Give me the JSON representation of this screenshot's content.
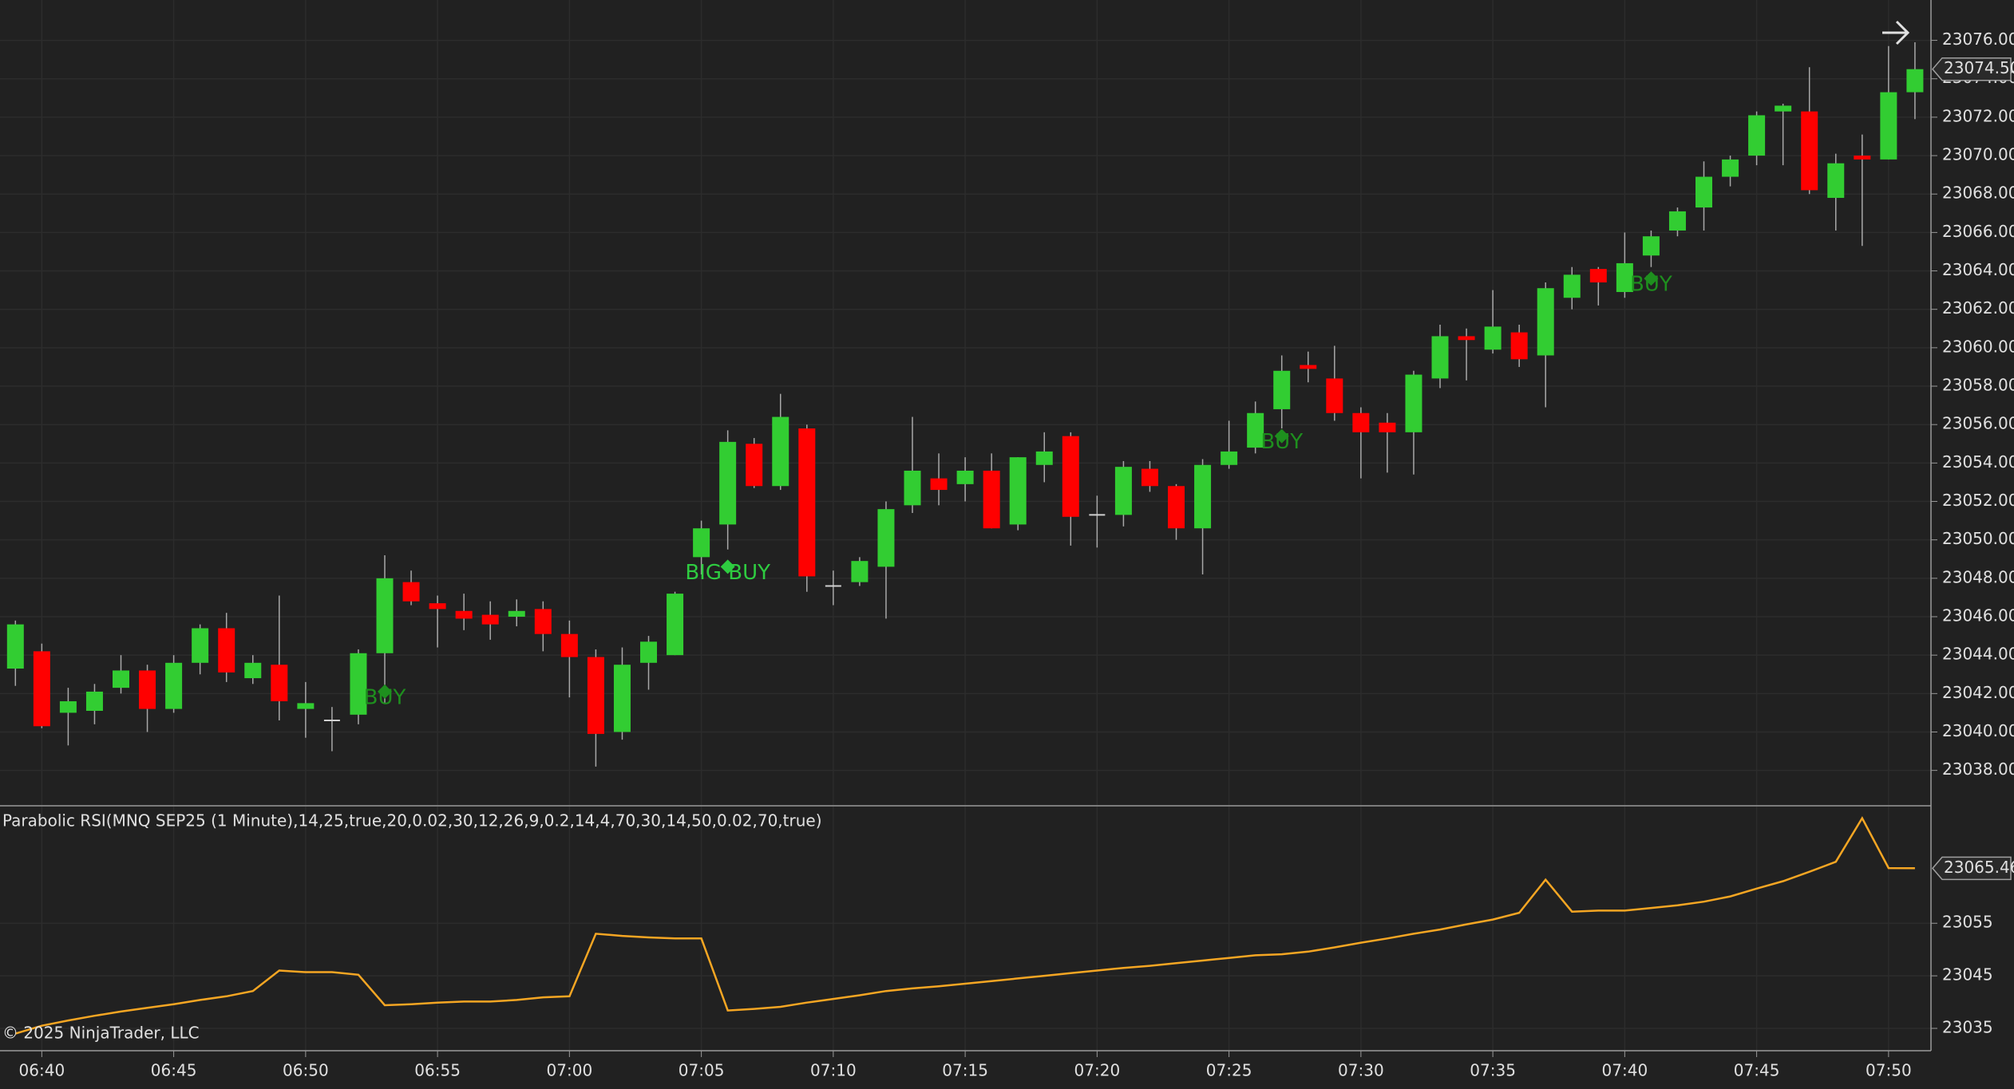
{
  "chart_data": [
    {
      "type": "candlestick",
      "categories": [
        null,
        "06:40",
        null,
        null,
        null,
        null,
        "06:45",
        null,
        null,
        null,
        null,
        "06:50",
        null,
        null,
        null,
        null,
        "06:55",
        null,
        null,
        null,
        null,
        "07:00",
        null,
        null,
        null,
        null,
        "07:05",
        null,
        null,
        null,
        null,
        "07:10",
        null,
        null,
        null,
        null,
        "07:15",
        null,
        null,
        null,
        null,
        "07:20",
        null,
        null,
        null,
        null,
        "07:25",
        null,
        null,
        null,
        null,
        "07:30",
        null,
        null,
        null,
        null,
        "07:35",
        null,
        null,
        null,
        null,
        "07:40",
        null,
        null,
        null,
        null,
        "07:45",
        null,
        null,
        null,
        null,
        "07:50",
        null
      ],
      "open": [
        23043.3,
        23044.2,
        23041,
        23041.1,
        23042.3,
        23043.2,
        23041.2,
        23043.6,
        23045.4,
        23042.8,
        23043.5,
        23041.2,
        23040.6,
        23040.9,
        23044.1,
        23047.8,
        23046.7,
        23046.3,
        23046.1,
        23046,
        23046.4,
        23045.1,
        23043.9,
        23040,
        23043.6,
        23044,
        23049.1,
        23050.8,
        23055,
        23052.8,
        23055.8,
        23047.6,
        23047.8,
        23048.6,
        23051.8,
        23053.2,
        23052.9,
        23053.6,
        23050.8,
        23053.9,
        23055.4,
        23051.3,
        23051.3,
        23053.7,
        23052.8,
        23050.6,
        23053.9,
        23054.8,
        23056.8,
        23059.1,
        23058.4,
        23056.6,
        23056.1,
        23055.6,
        23058.4,
        23060.6,
        23059.9,
        23060.8,
        23059.6,
        23062.6,
        23064.1,
        23062.9,
        23064.8,
        23066.1,
        23067.3,
        23068.9,
        23070,
        23072.3,
        23072.3,
        23067.8,
        23070,
        23069.8,
        23073.3
      ],
      "high": [
        23045.8,
        23044.6,
        23042.3,
        23042.5,
        23044,
        23043.5,
        23044,
        23045.6,
        23046.2,
        23044,
        23047.1,
        23042.6,
        23041.3,
        23044.3,
        23049.2,
        23048.4,
        23047.1,
        23047.2,
        23046.8,
        23046.9,
        23046.8,
        23045.8,
        23044.3,
        23044.4,
        23045,
        23047.3,
        23051,
        23055.7,
        23055.3,
        23057.6,
        23056,
        23048.4,
        23049.1,
        23052,
        23056.4,
        23054.5,
        23054.3,
        23054.5,
        23054.3,
        23055.6,
        23055.6,
        23052.3,
        23054.1,
        23054.1,
        23052.9,
        23054.2,
        23056.2,
        23057.2,
        23059.6,
        23059.8,
        23060.1,
        23056.9,
        23056.6,
        23058.8,
        23061.2,
        23061,
        23063,
        23061.2,
        23063.4,
        23064.2,
        23064.2,
        23066,
        23066.1,
        23067.3,
        23069.7,
        23070,
        23072.3,
        23072.7,
        23074.6,
        23070.1,
        23071.1,
        23075.7,
        23075.9
      ],
      "low": [
        23042.4,
        23040.2,
        23039.3,
        23040.4,
        23042,
        23040,
        23041,
        23043,
        23042.6,
        23042.5,
        23040.6,
        23039.7,
        23039,
        23040.4,
        23041.5,
        23046.6,
        23044.4,
        23045.3,
        23044.8,
        23045.5,
        23044.2,
        23041.8,
        23038.2,
        23039.6,
        23042.2,
        23044,
        23048.2,
        23049.5,
        23052.7,
        23052.6,
        23047.3,
        23046.6,
        23047.6,
        23045.9,
        23051.4,
        23051.8,
        23052,
        23050.6,
        23050.5,
        23053,
        23049.7,
        23049.6,
        23050.7,
        23052.5,
        23050,
        23048.2,
        23053.7,
        23054.5,
        23055.8,
        23058.2,
        23056.2,
        23053.2,
        23053.5,
        23053.4,
        23057.9,
        23058.3,
        23059.7,
        23059,
        23056.9,
        23062,
        23062.2,
        23062.6,
        23064.2,
        23065.8,
        23066.1,
        23068.4,
        23069.5,
        23069.5,
        23068,
        23066.1,
        23065.3,
        23069.8,
        23071.9
      ],
      "close": [
        23045.6,
        23040.3,
        23041.6,
        23042.1,
        23043.2,
        23041.2,
        23043.6,
        23045.4,
        23043.1,
        23043.6,
        23041.6,
        23041.5,
        23040.6,
        23044.1,
        23048,
        23046.8,
        23046.4,
        23045.9,
        23045.6,
        23046.3,
        23045.1,
        23043.9,
        23039.9,
        23043.5,
        23044.7,
        23047.2,
        23050.6,
        23055.1,
        23052.8,
        23056.4,
        23048.1,
        23047.6,
        23048.9,
        23051.6,
        23053.6,
        23052.6,
        23053.6,
        23050.6,
        23054.3,
        23054.6,
        23051.2,
        23051.3,
        23053.8,
        23052.8,
        23050.6,
        23053.9,
        23054.6,
        23056.6,
        23058.8,
        23058.9,
        23056.6,
        23055.6,
        23055.6,
        23058.6,
        23060.6,
        23060.4,
        23061.1,
        23059.4,
        23063.1,
        23063.8,
        23063.4,
        23064.4,
        23065.8,
        23067.1,
        23068.9,
        23069.8,
        23072.1,
        23072.6,
        23068.2,
        23069.6,
        23069.8,
        23073.3,
        23074.5
      ],
      "last_value_label": "23074.50",
      "color_up": "#32cd32",
      "color_down": "#ff0000",
      "signals": {
        "values": [
          null,
          null,
          null,
          null,
          null,
          null,
          null,
          null,
          null,
          null,
          null,
          null,
          null,
          null,
          23042.1,
          null,
          null,
          null,
          null,
          null,
          null,
          null,
          null,
          null,
          null,
          null,
          null,
          23048.6,
          null,
          null,
          null,
          null,
          null,
          null,
          null,
          null,
          null,
          null,
          null,
          null,
          null,
          null,
          null,
          null,
          null,
          null,
          null,
          null,
          23055.4,
          null,
          null,
          null,
          null,
          null,
          null,
          null,
          null,
          null,
          null,
          null,
          null,
          null,
          23063.6,
          null,
          null,
          null,
          null,
          null,
          null,
          null,
          null,
          null,
          null
        ],
        "labels": [
          null,
          null,
          null,
          null,
          null,
          null,
          null,
          null,
          null,
          null,
          null,
          null,
          null,
          null,
          "BUY",
          null,
          null,
          null,
          null,
          null,
          null,
          null,
          null,
          null,
          null,
          null,
          null,
          "BIG BUY",
          null,
          null,
          null,
          null,
          null,
          null,
          null,
          null,
          null,
          null,
          null,
          null,
          null,
          null,
          null,
          null,
          null,
          null,
          null,
          null,
          "BUY",
          null,
          null,
          null,
          null,
          null,
          null,
          null,
          null,
          null,
          null,
          null,
          null,
          null,
          "BUY",
          null,
          null,
          null,
          null,
          null,
          null,
          null,
          null,
          null,
          null
        ],
        "colors": [
          null,
          null,
          null,
          null,
          null,
          null,
          null,
          null,
          null,
          null,
          null,
          null,
          null,
          null,
          "#1e8f1e",
          null,
          null,
          null,
          null,
          null,
          null,
          null,
          null,
          null,
          null,
          null,
          null,
          "#2ecc40",
          null,
          null,
          null,
          null,
          null,
          null,
          null,
          null,
          null,
          null,
          null,
          null,
          null,
          null,
          null,
          null,
          null,
          null,
          null,
          null,
          "#1e8f1e",
          null,
          null,
          null,
          null,
          null,
          null,
          null,
          null,
          null,
          null,
          null,
          null,
          null,
          "#1e8f1e",
          null,
          null,
          null,
          null,
          null,
          null,
          null,
          null,
          null,
          null
        ]
      },
      "ylim": [
        23036.2,
        23078.1
      ],
      "yticks": [
        {
          "value": 23038,
          "label": "23038.00"
        },
        {
          "value": 23040,
          "label": "23040.00"
        },
        {
          "value": 23042,
          "label": "23042.00"
        },
        {
          "value": 23044,
          "label": "23044.00"
        },
        {
          "value": 23046,
          "label": "23046.00"
        },
        {
          "value": 23048,
          "label": "23048.00"
        },
        {
          "value": 23050,
          "label": "23050.00"
        },
        {
          "value": 23052,
          "label": "23052.00"
        },
        {
          "value": 23054,
          "label": "23054.00"
        },
        {
          "value": 23056,
          "label": "23056.00"
        },
        {
          "value": 23058,
          "label": "23058.00"
        },
        {
          "value": 23060,
          "label": "23060.00"
        },
        {
          "value": 23062,
          "label": "23062.00"
        },
        {
          "value": 23064,
          "label": "23064.00"
        },
        {
          "value": 23066,
          "label": "23066.00"
        },
        {
          "value": 23068,
          "label": "23068.00"
        },
        {
          "value": 23070,
          "label": "23070.00"
        },
        {
          "value": 23072,
          "label": "23072.00"
        },
        {
          "value": 23074,
          "label": "23074.00"
        },
        {
          "value": 23076,
          "label": "23076.00"
        }
      ],
      "grid": true
    },
    {
      "type": "line",
      "title": "Parabolic RSI(MNQ SEP25 (1 Minute),14,25,true,20,0.02,30,12,26,9,0.2,14,4,70,30,14,50,0.02,70,true)",
      "color": "#f5a623",
      "values": [
        23034,
        23035.5,
        23036.5,
        23037.4,
        23038.2,
        23038.9,
        23039.6,
        23040.4,
        23041.1,
        23042.1,
        23046,
        23045.7,
        23045.7,
        23045.2,
        23039.4,
        23039.6,
        23039.9,
        23040.1,
        23040.1,
        23040.4,
        23040.9,
        23041.1,
        23053,
        23052.6,
        23052.3,
        23052.1,
        23052.1,
        23038.4,
        23038.7,
        23039.1,
        23039.9,
        23040.6,
        23041.3,
        23042.1,
        23042.6,
        23043,
        23043.5,
        23044,
        23044.5,
        23045,
        23045.5,
        23046,
        23046.5,
        23046.9,
        23047.4,
        23047.9,
        23048.4,
        23048.9,
        23049.1,
        23049.6,
        23050.4,
        23051.3,
        23052.1,
        23053,
        23053.8,
        23054.8,
        23055.7,
        23057,
        23063.3,
        23057.2,
        23057.4,
        23057.4,
        23057.9,
        23058.4,
        23059.1,
        23060.1,
        23061.6,
        23063,
        23064.8,
        23066.7,
        23075,
        23065.5,
        23065.46
      ],
      "ylim": [
        23030.9,
        23077.2
      ],
      "yticks": [
        23035,
        23045,
        23055
      ],
      "grid": true
    }
  ],
  "footer": "© 2025 NinjaTrader, LLC"
}
